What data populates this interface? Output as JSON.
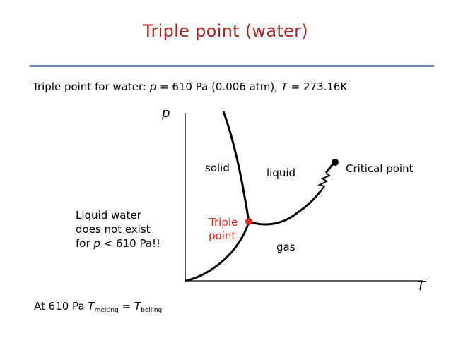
{
  "slide": {
    "title": "Triple point (water)",
    "info": {
      "prefix": "Triple point for water: ",
      "p_symbol": "p",
      "p_value": " = 610 Pa (0.006 atm), ",
      "t_symbol": "T",
      "t_value": " = 273.16K"
    },
    "note": {
      "line1": "Liquid water",
      "line2": "does not exist",
      "line3_prefix": "for ",
      "line3_symbol": "p",
      "line3_suffix": " < 610 Pa!!"
    },
    "bottom": {
      "prefix": "At 610 Pa ",
      "t1": "T",
      "sub1": "melting",
      "eq": " = ",
      "t2": "T",
      "sub2": "boiling"
    }
  },
  "diagram": {
    "axis_y_label": "p",
    "axis_x_label": "T",
    "regions": {
      "solid": "solid",
      "liquid": "liquid",
      "gas": "gas"
    },
    "critical_point_label": "Critical point",
    "triple_point_label": [
      "Triple",
      "point"
    ],
    "colors": {
      "title": "#b22222",
      "rule": "#6b84b8",
      "triple_point": "#e8231b",
      "curves": "#000000"
    }
  }
}
